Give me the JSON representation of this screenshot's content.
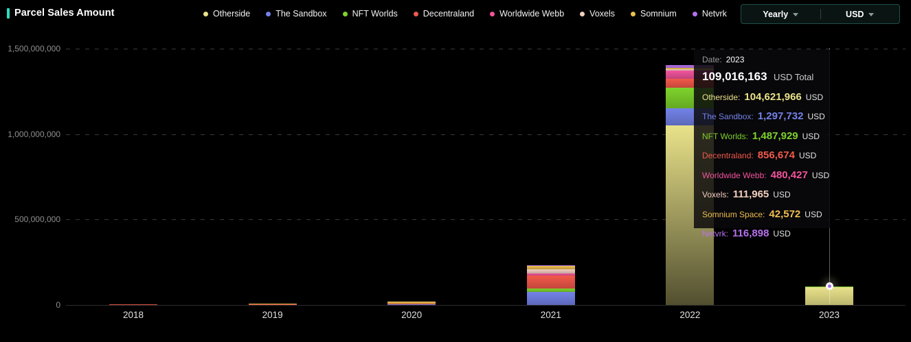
{
  "header": {
    "title": "Parcel Sales Amount",
    "accent_color": "#2be0c4",
    "controls": {
      "period": "Yearly",
      "currency": "USD",
      "border_color": "#1d5049"
    }
  },
  "legend": [
    {
      "label": "Otherside",
      "color": "#e9e28a"
    },
    {
      "label": "The Sandbox",
      "color": "#7382e8"
    },
    {
      "label": "NFT Worlds",
      "color": "#7ed32c"
    },
    {
      "label": "Decentraland",
      "color": "#f2594a"
    },
    {
      "label": "Worldwide Webb",
      "color": "#f2549c"
    },
    {
      "label": "Voxels",
      "color": "#f2cfc0"
    },
    {
      "label": "Somnium",
      "color": "#edbf4e"
    },
    {
      "label": "Netvrk",
      "color": "#b671ed"
    }
  ],
  "chart_data": {
    "type": "bar",
    "stacked": true,
    "title": "Parcel Sales Amount",
    "xlabel": "",
    "ylabel": "USD",
    "grid": "dashed-horizontal",
    "legend_position": "top",
    "categories": [
      "2018",
      "2019",
      "2020",
      "2021",
      "2022",
      "2023"
    ],
    "series": [
      {
        "name": "Otherside",
        "color": "#e9e28a",
        "values": [
          0,
          0,
          0,
          0,
          1052000000,
          104621966
        ]
      },
      {
        "name": "The Sandbox",
        "color": "#7382e8",
        "values": [
          0,
          0,
          5000000,
          76000000,
          100000000,
          1297732
        ]
      },
      {
        "name": "NFT Worlds",
        "color": "#7ed32c",
        "values": [
          0,
          0,
          0,
          20000000,
          120000000,
          1487929
        ]
      },
      {
        "name": "Decentraland",
        "color": "#f2594a",
        "values": [
          4000000,
          6000000,
          1500000,
          76000000,
          52000000,
          856674
        ]
      },
      {
        "name": "Worldwide Webb",
        "color": "#f2549c",
        "values": [
          0,
          0,
          0,
          12000000,
          48000000,
          480427
        ]
      },
      {
        "name": "Voxels",
        "color": "#f2cfc0",
        "values": [
          0,
          0,
          3000000,
          24000000,
          8000000,
          111965
        ]
      },
      {
        "name": "Somnium",
        "color": "#edbf4e",
        "values": [
          0,
          2000000,
          12000000,
          20000000,
          6000000,
          42572
        ]
      },
      {
        "name": "Netvrk",
        "color": "#b671ed",
        "values": [
          0,
          0,
          0,
          4000000,
          16000000,
          116898
        ]
      }
    ],
    "y_ticks": [
      {
        "value": 0,
        "label": "0"
      },
      {
        "value": 500000000,
        "label": "500,000,000"
      },
      {
        "value": 1000000000,
        "label": "1,000,000,000"
      },
      {
        "value": 1500000000,
        "label": "1,500,000,000"
      }
    ],
    "ylim": [
      0,
      1500000000
    ],
    "hovered_category": "2023",
    "marker_color": "#a86ee8"
  },
  "tooltip": {
    "date_label": "Date:",
    "date_value": "2023",
    "total_value": "109,016,163",
    "total_suffix": "USD Total",
    "rows": [
      {
        "label": "Otherside:",
        "value": "104,621,966",
        "suffix": "USD",
        "color": "#e9e28a"
      },
      {
        "label": "The Sandbox:",
        "value": "1,297,732",
        "suffix": "USD",
        "color": "#7382e8"
      },
      {
        "label": "NFT Worlds:",
        "value": "1,487,929",
        "suffix": "USD",
        "color": "#7ed32c"
      },
      {
        "label": "Decentraland:",
        "value": "856,674",
        "suffix": "USD",
        "color": "#f2594a"
      },
      {
        "label": "Worldwide Webb:",
        "value": "480,427",
        "suffix": "USD",
        "color": "#f2549c"
      },
      {
        "label": "Voxels:",
        "value": "111,965",
        "suffix": "USD",
        "color": "#f2cfc0"
      },
      {
        "label": "Somnium Space:",
        "value": "42,572",
        "suffix": "USD",
        "color": "#edbf4e"
      },
      {
        "label": "Netvrk:",
        "value": "116,898",
        "suffix": "USD",
        "color": "#b671ed"
      }
    ]
  }
}
